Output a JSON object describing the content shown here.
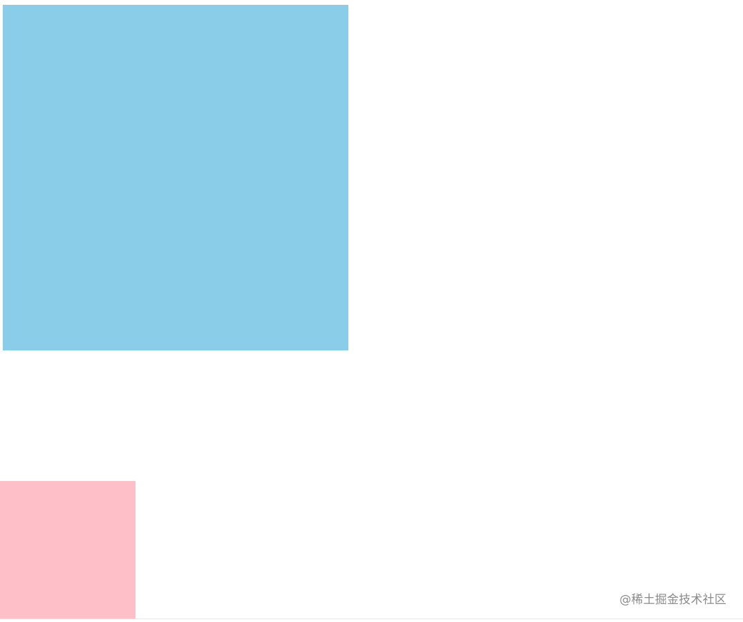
{
  "boxes": {
    "blue": {
      "color": "#89cde9"
    },
    "pink": {
      "color": "#ffbfc8"
    }
  },
  "watermark": {
    "text": "@稀土掘金技术社区"
  }
}
